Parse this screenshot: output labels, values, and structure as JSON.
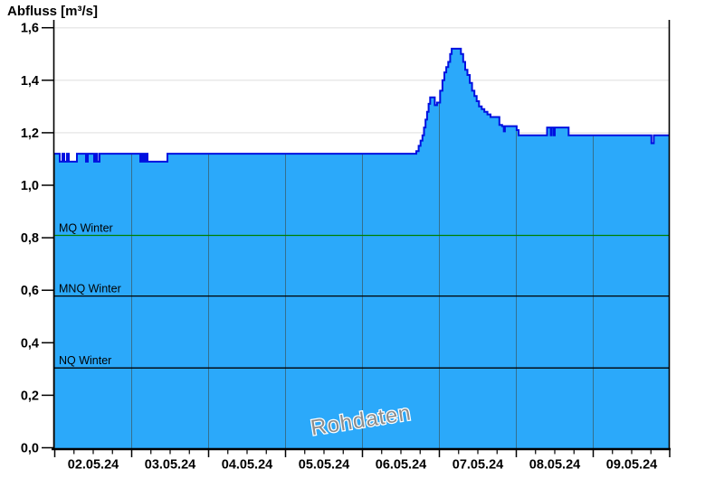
{
  "title": "Abfluss [m³/s]",
  "watermark": "Rohdaten",
  "chart_data": {
    "type": "area",
    "title": "Abfluss [m³/s]",
    "ylabel": "Abfluss [m³/s]",
    "xlabel": "",
    "ylim": [
      0.0,
      1.6
    ],
    "ytick_step": 0.2,
    "ytick_labels": [
      "0,0",
      "0,2",
      "0,4",
      "0,6",
      "0,8",
      "1,0",
      "1,2",
      "1,4",
      "1,6"
    ],
    "xtick_labels": [
      "02.05.24",
      "03.05.24",
      "04.05.24",
      "05.05.24",
      "06.05.24",
      "07.05.24",
      "08.05.24",
      "09.05.24"
    ],
    "x_minor_ticks_per_day": 4,
    "xlim_days": [
      -0.018,
      7.994
    ],
    "grid": "on",
    "legend": "none",
    "watermark": "Rohdaten",
    "series": [
      {
        "name": "Abfluss Rohdaten",
        "unit": "m³/s",
        "step": "after",
        "points_day_value": [
          [
            -0.018,
            1.12
          ],
          [
            0.065,
            1.09
          ],
          [
            0.1,
            1.12
          ],
          [
            0.124,
            1.09
          ],
          [
            0.159,
            1.12
          ],
          [
            0.182,
            1.09
          ],
          [
            0.288,
            1.12
          ],
          [
            0.406,
            1.09
          ],
          [
            0.429,
            1.12
          ],
          [
            0.512,
            1.09
          ],
          [
            0.535,
            1.12
          ],
          [
            0.553,
            1.09
          ],
          [
            0.582,
            1.12
          ],
          [
            1.112,
            1.09
          ],
          [
            1.135,
            1.12
          ],
          [
            1.159,
            1.09
          ],
          [
            1.182,
            1.12
          ],
          [
            1.206,
            1.09
          ],
          [
            1.465,
            1.12
          ],
          [
            4.7,
            1.13
          ],
          [
            4.73,
            1.15
          ],
          [
            4.755,
            1.17
          ],
          [
            4.78,
            1.19
          ],
          [
            4.8,
            1.22
          ],
          [
            4.82,
            1.25
          ],
          [
            4.84,
            1.28
          ],
          [
            4.86,
            1.31
          ],
          [
            4.88,
            1.335
          ],
          [
            4.94,
            1.305
          ],
          [
            4.97,
            1.315
          ],
          [
            5.01,
            1.36
          ],
          [
            5.04,
            1.4
          ],
          [
            5.065,
            1.43
          ],
          [
            5.09,
            1.45
          ],
          [
            5.115,
            1.47
          ],
          [
            5.14,
            1.5
          ],
          [
            5.16,
            1.52
          ],
          [
            5.28,
            1.5
          ],
          [
            5.31,
            1.47
          ],
          [
            5.335,
            1.44
          ],
          [
            5.365,
            1.42
          ],
          [
            5.395,
            1.39
          ],
          [
            5.425,
            1.36
          ],
          [
            5.455,
            1.34
          ],
          [
            5.485,
            1.32
          ],
          [
            5.515,
            1.3
          ],
          [
            5.55,
            1.29
          ],
          [
            5.585,
            1.28
          ],
          [
            5.625,
            1.27
          ],
          [
            5.665,
            1.26
          ],
          [
            5.78,
            1.23
          ],
          [
            5.815,
            1.225
          ],
          [
            5.838,
            1.205
          ],
          [
            5.852,
            1.225
          ],
          [
            6.005,
            1.21
          ],
          [
            6.03,
            1.19
          ],
          [
            6.4,
            1.22
          ],
          [
            6.447,
            1.19
          ],
          [
            6.46,
            1.22
          ],
          [
            6.487,
            1.19
          ],
          [
            6.5,
            1.22
          ],
          [
            6.68,
            1.19
          ],
          [
            7.757,
            1.16
          ],
          [
            7.787,
            1.19
          ],
          [
            7.994,
            1.19
          ]
        ]
      }
    ],
    "reference_lines": [
      {
        "label": "MQ Winter",
        "value": 0.809,
        "color": "#008000"
      },
      {
        "label": "MNQ Winter",
        "value": 0.578,
        "color": "#000000"
      },
      {
        "label": "NQ Winter",
        "value": 0.304,
        "color": "#000000"
      }
    ],
    "colors": {
      "area_fill": "#2BA9FA",
      "area_stroke": "#0010E0",
      "grid_horizontal": "#e9e9e9",
      "grid_vertical_on_area": "#34708f",
      "axis": "#000000",
      "tick_label": "#000000",
      "watermark": "#8c8c8c",
      "watermark_halo": "#ffffff",
      "background": "#ffffff"
    }
  }
}
